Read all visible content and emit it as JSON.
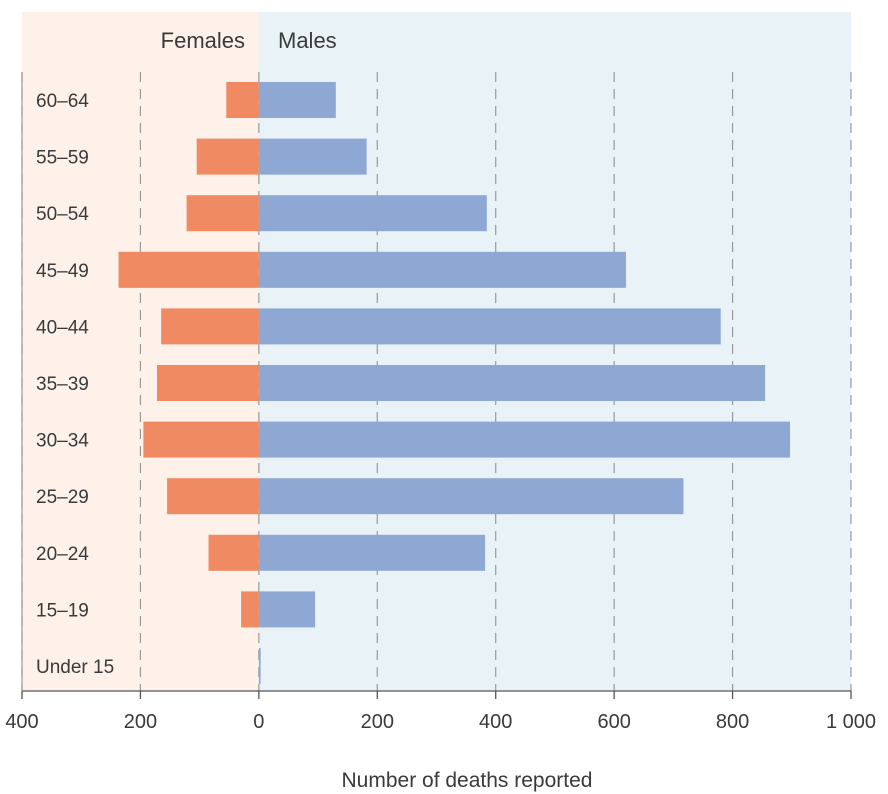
{
  "chart_data": {
    "type": "bar",
    "orientation": "horizontal-diverging",
    "xlabel": "Number of deaths reported",
    "xlim": [
      -400,
      1000
    ],
    "x_ticks": [
      -400,
      -200,
      0,
      200,
      400,
      600,
      800,
      1000
    ],
    "x_tick_labels": [
      "400",
      "200",
      "0",
      "200",
      "400",
      "600",
      "800",
      "1 000"
    ],
    "grid": true,
    "categories": [
      "60–64",
      "55–59",
      "50–54",
      "45–49",
      "40–44",
      "35–39",
      "30–34",
      "25–29",
      "20–24",
      "15–19",
      "Under 15"
    ],
    "series": [
      {
        "name": "Females",
        "color": "#F08A62",
        "direction": "left",
        "values": [
          55,
          105,
          122,
          237,
          165,
          172,
          195,
          155,
          85,
          30,
          0
        ]
      },
      {
        "name": "Males",
        "color": "#8FA8D3",
        "direction": "right",
        "values": [
          130,
          182,
          385,
          620,
          780,
          855,
          897,
          717,
          382,
          95,
          3
        ]
      }
    ],
    "region_colors": {
      "females": "#FDF1EA",
      "males": "#E8F2F7"
    }
  }
}
